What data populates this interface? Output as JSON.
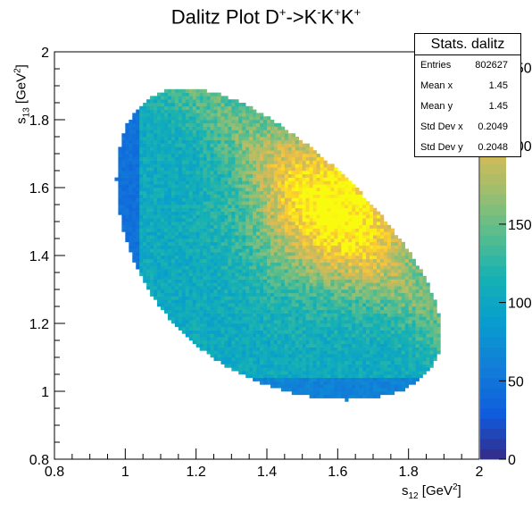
{
  "chart_data": {
    "type": "heatmap",
    "title_main": "Dalitz Plot D",
    "title_parts": [
      "+",
      "->K",
      "-",
      "K",
      "+",
      "K",
      "+"
    ],
    "xlabel_main": "s",
    "xlabel_sub": "12",
    "xlabel_unit": " [GeV",
    "xlabel_sup": "2",
    "xlabel_close": "]",
    "ylabel_main": "s",
    "ylabel_sub": "13",
    "ylabel_unit": " [GeV",
    "ylabel_sup": "2",
    "ylabel_close": "]",
    "xlim": [
      0.8,
      2.0
    ],
    "ylim": [
      0.8,
      2.0
    ],
    "x_ticks": [
      "0.8",
      "1",
      "1.2",
      "1.4",
      "1.6",
      "1.8",
      "2"
    ],
    "y_ticks": [
      "0.8",
      "1",
      "1.2",
      "1.4",
      "1.6",
      "1.8",
      "2"
    ],
    "z_ticks": [
      "0",
      "50",
      "100",
      "150",
      "200",
      "250"
    ],
    "zlim": [
      0,
      260
    ],
    "palette": "parula"
  },
  "stats": {
    "title": "Stats. dalitz",
    "rows": [
      {
        "k": "Entries",
        "v": "802627"
      },
      {
        "k": "Mean x",
        "v": "1.45"
      },
      {
        "k": "Mean y",
        "v": "1.45"
      },
      {
        "k": "Std Dev x",
        "v": "0.2049"
      },
      {
        "k": "Std Dev y",
        "v": "0.2048"
      }
    ]
  }
}
